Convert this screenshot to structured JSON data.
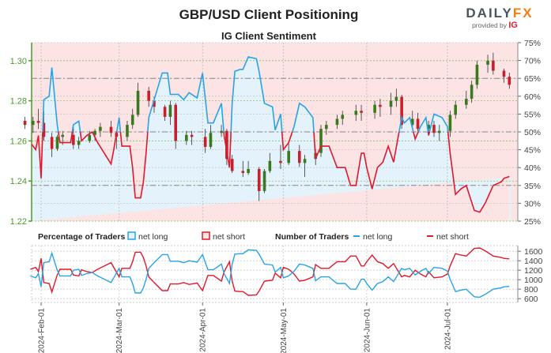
{
  "header": {
    "title": "GBP/USD Client Positioning",
    "subtitle": "IG Client Sentiment",
    "logo_text": "DAILYFX",
    "logo_sub": "provided by IG"
  },
  "colors": {
    "net_long": "#29a3e6",
    "net_short": "#e0182d",
    "bull_candle": "#3a7a1e",
    "bear_candle": "#c8202a",
    "axis_green": "#4a9a2a",
    "bg_short": "#fce4e4",
    "bg_long": "#e4f2fb"
  },
  "legend": {
    "pct_title": "Percentage of Traders",
    "pct_long": "net long",
    "pct_short": "net short",
    "num_title": "Number of Traders",
    "num_long": "net long",
    "num_short": "net short"
  },
  "chart_data": [
    {
      "type": "candlestick+line",
      "title": "IG Client Sentiment",
      "left_axis": {
        "label": "",
        "ticks": [
          "1.22",
          "1.24",
          "1.26",
          "1.28",
          "1.30"
        ],
        "range": [
          1.22,
          1.309
        ]
      },
      "right_axis": {
        "label": "",
        "ticks": [
          "25%",
          "30%",
          "35%",
          "40%",
          "45%",
          "50%",
          "55%",
          "60%",
          "65%",
          "70%",
          "75%"
        ],
        "range": [
          25,
          75
        ]
      },
      "reference_lines_pct": [
        35,
        50,
        65
      ],
      "grid": true,
      "candles_columns": [
        "date",
        "open",
        "high",
        "low",
        "close"
      ],
      "candles": [
        [
          "2024-01-26",
          1.27,
          1.272,
          1.266,
          1.268
        ],
        [
          "2024-01-29",
          1.268,
          1.272,
          1.264,
          1.27
        ],
        [
          "2024-01-31",
          1.27,
          1.276,
          1.266,
          1.269
        ],
        [
          "2024-02-02",
          1.269,
          1.275,
          1.26,
          1.262
        ],
        [
          "2024-02-05",
          1.262,
          1.264,
          1.252,
          1.256
        ],
        [
          "2024-02-07",
          1.256,
          1.263,
          1.255,
          1.262
        ],
        [
          "2024-02-09",
          1.262,
          1.265,
          1.258,
          1.263
        ],
        [
          "2024-02-13",
          1.263,
          1.267,
          1.256,
          1.258
        ],
        [
          "2024-02-15",
          1.258,
          1.262,
          1.256,
          1.26
        ],
        [
          "2024-02-19",
          1.26,
          1.265,
          1.259,
          1.263
        ],
        [
          "2024-02-21",
          1.263,
          1.266,
          1.26,
          1.265
        ],
        [
          "2024-02-23",
          1.265,
          1.269,
          1.262,
          1.267
        ],
        [
          "2024-02-27",
          1.267,
          1.27,
          1.262,
          1.264
        ],
        [
          "2024-02-29",
          1.264,
          1.265,
          1.256,
          1.262
        ],
        [
          "2024-03-04",
          1.262,
          1.27,
          1.26,
          1.268
        ],
        [
          "2024-03-06",
          1.268,
          1.276,
          1.266,
          1.273
        ],
        [
          "2024-03-08",
          1.273,
          1.289,
          1.272,
          1.285
        ],
        [
          "2024-03-12",
          1.285,
          1.287,
          1.277,
          1.28
        ],
        [
          "2024-03-14",
          1.28,
          1.282,
          1.274,
          1.277
        ],
        [
          "2024-03-18",
          1.277,
          1.278,
          1.27,
          1.272
        ],
        [
          "2024-03-20",
          1.272,
          1.28,
          1.268,
          1.278
        ],
        [
          "2024-03-22",
          1.278,
          1.279,
          1.256,
          1.26
        ],
        [
          "2024-03-26",
          1.26,
          1.265,
          1.258,
          1.263
        ],
        [
          "2024-03-28",
          1.263,
          1.265,
          1.258,
          1.262
        ],
        [
          "2024-04-02",
          1.262,
          1.266,
          1.254,
          1.257
        ],
        [
          "2024-04-04",
          1.257,
          1.268,
          1.256,
          1.264
        ],
        [
          "2024-04-08",
          1.264,
          1.268,
          1.262,
          1.265
        ],
        [
          "2024-04-10",
          1.265,
          1.266,
          1.248,
          1.251
        ],
        [
          "2024-04-12",
          1.251,
          1.253,
          1.244,
          1.245
        ],
        [
          "2024-04-16",
          1.245,
          1.25,
          1.242,
          1.244
        ],
        [
          "2024-04-18",
          1.244,
          1.25,
          1.243,
          1.246
        ],
        [
          "2024-04-22",
          1.246,
          1.247,
          1.23,
          1.235
        ],
        [
          "2024-04-24",
          1.235,
          1.246,
          1.234,
          1.245
        ],
        [
          "2024-04-26",
          1.245,
          1.254,
          1.244,
          1.25
        ],
        [
          "2024-04-30",
          1.25,
          1.258,
          1.246,
          1.249
        ],
        [
          "2024-05-03",
          1.249,
          1.259,
          1.248,
          1.255
        ],
        [
          "2024-05-07",
          1.255,
          1.258,
          1.247,
          1.249
        ],
        [
          "2024-05-09",
          1.249,
          1.253,
          1.242,
          1.251
        ],
        [
          "2024-05-13",
          1.251,
          1.256,
          1.248,
          1.254
        ],
        [
          "2024-05-15",
          1.254,
          1.268,
          1.252,
          1.266
        ],
        [
          "2024-05-17",
          1.266,
          1.27,
          1.263,
          1.268
        ],
        [
          "2024-05-21",
          1.268,
          1.273,
          1.266,
          1.271
        ],
        [
          "2024-05-23",
          1.271,
          1.275,
          1.268,
          1.273
        ],
        [
          "2024-05-28",
          1.273,
          1.278,
          1.27,
          1.275
        ],
        [
          "2024-05-30",
          1.275,
          1.278,
          1.27,
          1.274
        ],
        [
          "2024-06-04",
          1.274,
          1.28,
          1.271,
          1.278
        ],
        [
          "2024-06-06",
          1.278,
          1.281,
          1.272,
          1.277
        ],
        [
          "2024-06-10",
          1.277,
          1.284,
          1.273,
          1.28
        ],
        [
          "2024-06-12",
          1.28,
          1.286,
          1.277,
          1.282
        ],
        [
          "2024-06-14",
          1.282,
          1.283,
          1.266,
          1.268
        ],
        [
          "2024-06-18",
          1.268,
          1.275,
          1.266,
          1.271
        ],
        [
          "2024-06-20",
          1.271,
          1.274,
          1.264,
          1.266
        ],
        [
          "2024-06-24",
          1.266,
          1.27,
          1.263,
          1.268
        ],
        [
          "2024-06-26",
          1.268,
          1.27,
          1.262,
          1.264
        ],
        [
          "2024-06-28",
          1.264,
          1.268,
          1.26,
          1.265
        ],
        [
          "2024-07-02",
          1.265,
          1.275,
          1.262,
          1.273
        ],
        [
          "2024-07-04",
          1.273,
          1.28,
          1.271,
          1.278
        ],
        [
          "2024-07-08",
          1.278,
          1.285,
          1.276,
          1.281
        ],
        [
          "2024-07-10",
          1.281,
          1.29,
          1.279,
          1.288
        ],
        [
          "2024-07-12",
          1.288,
          1.3,
          1.286,
          1.298
        ],
        [
          "2024-07-16",
          1.298,
          1.303,
          1.294,
          1.3
        ],
        [
          "2024-07-18",
          1.3,
          1.304,
          1.293,
          1.295
        ],
        [
          "2024-07-22",
          1.295,
          1.296,
          1.289,
          1.292
        ],
        [
          "2024-07-24",
          1.292,
          1.294,
          1.286,
          1.288
        ]
      ],
      "sentiment_dates": [
        "2024-01-28",
        "2024-01-30",
        "2024-01-31",
        "2024-02-01",
        "2024-02-02",
        "2024-02-04",
        "2024-02-05",
        "2024-02-07",
        "2024-02-08",
        "2024-02-12",
        "2024-02-13",
        "2024-02-15",
        "2024-02-16",
        "2024-02-18",
        "2024-02-20",
        "2024-02-22",
        "2024-02-27",
        "2024-02-28",
        "2024-03-01",
        "2024-03-02",
        "2024-03-05",
        "2024-03-06",
        "2024-03-07",
        "2024-03-09",
        "2024-03-10",
        "2024-03-11",
        "2024-03-12",
        "2024-03-14",
        "2024-03-17",
        "2024-03-19",
        "2024-03-20",
        "2024-03-23",
        "2024-03-25",
        "2024-03-27",
        "2024-03-30",
        "2024-04-01",
        "2024-04-03",
        "2024-04-05",
        "2024-04-08",
        "2024-04-09",
        "2024-04-11",
        "2024-04-12",
        "2024-04-13",
        "2024-04-15",
        "2024-04-16",
        "2024-04-18",
        "2024-04-21",
        "2024-04-22",
        "2024-04-24",
        "2024-04-27",
        "2024-04-28",
        "2024-04-30",
        "2024-05-01",
        "2024-05-03",
        "2024-05-05",
        "2024-05-07",
        "2024-05-09",
        "2024-05-12",
        "2024-05-13",
        "2024-05-15",
        "2024-05-18",
        "2024-05-19",
        "2024-05-21",
        "2024-05-24",
        "2024-05-26",
        "2024-05-28",
        "2024-05-30",
        "2024-05-31",
        "2024-06-01",
        "2024-06-03",
        "2024-06-05",
        "2024-06-07",
        "2024-06-09",
        "2024-06-11",
        "2024-06-14",
        "2024-06-15",
        "2024-06-17",
        "2024-06-19",
        "2024-06-21",
        "2024-06-23",
        "2024-06-24",
        "2024-06-26",
        "2024-06-29",
        "2024-07-01",
        "2024-07-02",
        "2024-07-04",
        "2024-07-06",
        "2024-07-08",
        "2024-07-11",
        "2024-07-13",
        "2024-07-15",
        "2024-07-18",
        "2024-07-21",
        "2024-07-22",
        "2024-07-24"
      ],
      "net_long_pct": [
        47,
        45,
        49,
        37,
        59,
        60,
        68,
        52,
        47,
        47,
        52,
        53,
        47.5,
        49,
        50,
        47,
        41,
        45,
        54,
        46,
        46,
        40,
        31.5,
        31.5,
        36,
        44,
        54,
        59,
        66.5,
        66.5,
        60.5,
        60.5,
        59,
        61,
        59.5,
        66.5,
        52.5,
        52.5,
        58,
        49,
        40,
        58,
        67,
        67.5,
        67.5,
        71,
        70.5,
        67,
        58,
        57,
        50.5,
        55,
        45,
        47,
        51.5,
        58,
        57,
        54,
        42.5,
        46,
        46,
        44,
        40,
        40,
        35,
        35,
        44,
        44,
        40,
        34,
        40,
        41.5,
        46,
        41.5,
        54,
        52.5,
        54,
        48,
        51.5,
        54,
        49,
        55,
        54,
        51.5,
        44,
        32.5,
        34,
        35,
        28,
        27.5,
        30,
        35,
        36,
        37,
        37.5
      ]
    },
    {
      "type": "line",
      "title": "Number of Traders",
      "right_axis": {
        "ticks": [
          "600",
          "800",
          "1000",
          "1200",
          "1400",
          "1600"
        ],
        "range": [
          520,
          1720
        ]
      },
      "x_ticks": [
        "2024-Feb-01",
        "2024-Mar-01",
        "2024-Apr-01",
        "2024-May-01",
        "2024-Jun-01",
        "2024-Jul-01"
      ],
      "series": [
        {
          "name": "net long",
          "values": [
            1080,
            1040,
            1130,
            850,
            1360,
            1380,
            1560,
            1200,
            1080,
            1080,
            1200,
            1220,
            1090,
            1130,
            1150,
            1080,
            940,
            1040,
            1240,
            1060,
            1060,
            920,
            720,
            720,
            830,
            1010,
            1240,
            1360,
            1530,
            1530,
            1390,
            1390,
            1360,
            1400,
            1370,
            1530,
            1210,
            1210,
            1330,
            1130,
            920,
            1330,
            1540,
            1550,
            1550,
            1630,
            1620,
            1540,
            1330,
            1310,
            1160,
            1260,
            1040,
            1080,
            1180,
            1330,
            1310,
            1240,
            980,
            1060,
            1060,
            1010,
            920,
            920,
            800,
            800,
            1010,
            1010,
            920,
            780,
            920,
            960,
            1060,
            960,
            1240,
            1210,
            1240,
            1100,
            1180,
            1240,
            1130,
            1260,
            1240,
            1180,
            1010,
            750,
            780,
            800,
            640,
            630,
            690,
            800,
            830,
            850,
            860
          ]
        },
        {
          "name": "net short",
          "values": [
            1220,
            1260,
            1170,
            1450,
            940,
            920,
            740,
            1100,
            1220,
            1220,
            1100,
            1080,
            1210,
            1170,
            1150,
            1220,
            1360,
            1260,
            1060,
            1240,
            1240,
            1380,
            1580,
            1580,
            1470,
            1290,
            1060,
            940,
            770,
            770,
            910,
            910,
            940,
            900,
            930,
            770,
            1090,
            1090,
            970,
            1170,
            1380,
            970,
            760,
            750,
            750,
            670,
            680,
            760,
            970,
            990,
            1140,
            1040,
            1260,
            1220,
            1120,
            970,
            990,
            1060,
            1320,
            1240,
            1240,
            1290,
            1380,
            1380,
            1500,
            1500,
            1290,
            1290,
            1380,
            1520,
            1380,
            1340,
            1240,
            1340,
            1060,
            1090,
            1060,
            1200,
            1120,
            1060,
            1170,
            1040,
            1060,
            1120,
            1290,
            1550,
            1520,
            1500,
            1660,
            1670,
            1610,
            1500,
            1470,
            1450,
            1440
          ]
        }
      ]
    }
  ]
}
